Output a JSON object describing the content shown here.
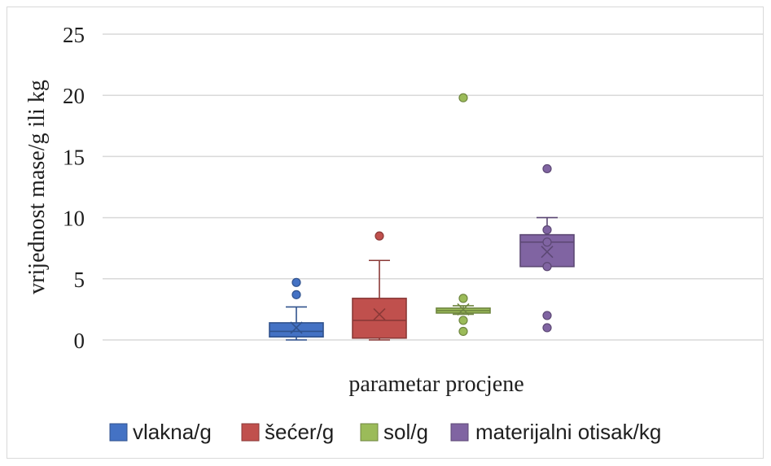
{
  "chart_data": {
    "type": "box",
    "title": "",
    "xlabel": "parametar procjene",
    "ylabel": "vrijednost mase/g ili kg",
    "ylim": [
      0,
      25
    ],
    "yticks": [
      0,
      5,
      10,
      15,
      20,
      25
    ],
    "grid": true,
    "legend_position": "bottom",
    "series": [
      {
        "name": "vlakna/g",
        "color": "#4472c4",
        "min": 0,
        "q1": 0.25,
        "median": 0.7,
        "q3": 1.4,
        "max": 2.7,
        "mean": 1.0,
        "points": [
          3.7,
          4.7
        ],
        "outliers": [
          3.7,
          4.7
        ]
      },
      {
        "name": "šećer/g",
        "color": "#c0504d",
        "min": 0,
        "q1": 0.15,
        "median": 1.6,
        "q3": 3.4,
        "max": 6.5,
        "mean": 2.1,
        "points": [
          8.5
        ],
        "outliers": [
          8.5
        ]
      },
      {
        "name": "sol/g",
        "color": "#9bbb59",
        "min": 2.1,
        "q1": 2.2,
        "median": 2.4,
        "q3": 2.6,
        "max": 2.8,
        "mean": 2.5,
        "points": [
          3.4,
          1.6,
          0.7,
          19.8
        ],
        "outliers": [
          3.4,
          1.6,
          0.7,
          19.8
        ]
      },
      {
        "name": "materijalni otisak/kg",
        "color": "#8064a2",
        "min": 6,
        "q1": 6.0,
        "median": 8.0,
        "q3": 8.6,
        "max": 10,
        "mean": 7.2,
        "points": [
          9,
          8,
          6,
          14,
          2,
          1
        ],
        "outliers": [
          14,
          2,
          1
        ]
      }
    ]
  }
}
